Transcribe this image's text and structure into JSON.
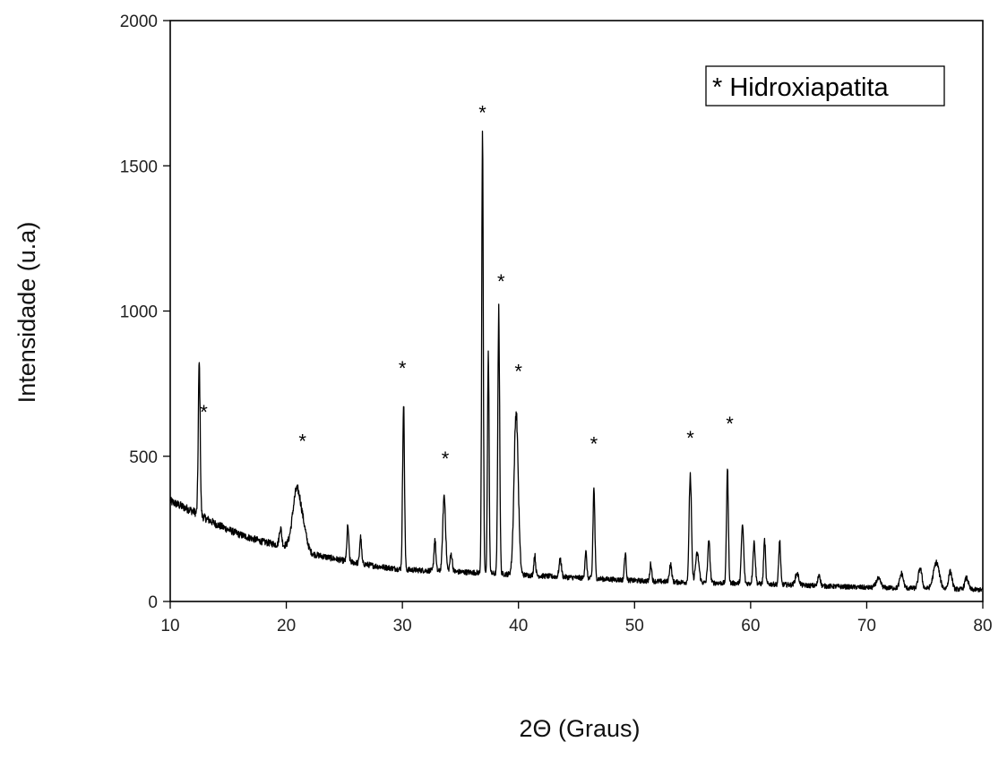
{
  "chart_data": {
    "type": "line",
    "xlabel": "2Θ (Graus)",
    "ylabel": "Intensidade (u.a)",
    "xlim": [
      10,
      80
    ],
    "ylim": [
      0,
      2000
    ],
    "xticks": [
      10,
      20,
      30,
      40,
      50,
      60,
      70,
      80
    ],
    "yticks": [
      0,
      500,
      1000,
      1500,
      2000
    ],
    "grid": false,
    "legend": {
      "text": "* Hidroxiapatita",
      "placement": "top-right"
    },
    "series": [
      {
        "color": "#000000",
        "baseline": [
          [
            10,
            345
          ],
          [
            12,
            310
          ],
          [
            14,
            265
          ],
          [
            16,
            230
          ],
          [
            18,
            205
          ],
          [
            20,
            190
          ],
          [
            22,
            165
          ],
          [
            25,
            140
          ],
          [
            28,
            120
          ],
          [
            30,
            110
          ],
          [
            33,
            105
          ],
          [
            36,
            100
          ],
          [
            40,
            92
          ],
          [
            45,
            82
          ],
          [
            50,
            72
          ],
          [
            55,
            65
          ],
          [
            60,
            62
          ],
          [
            65,
            55
          ],
          [
            70,
            48
          ],
          [
            75,
            45
          ],
          [
            80,
            40
          ]
        ],
        "peaks": [
          [
            12.5,
            520,
            0.08
          ],
          [
            19.5,
            60,
            0.1
          ],
          [
            20.9,
            200,
            0.35
          ],
          [
            21.5,
            60,
            0.3
          ],
          [
            25.3,
            120,
            0.08
          ],
          [
            26.4,
            90,
            0.08
          ],
          [
            30.1,
            570,
            0.08
          ],
          [
            32.8,
            110,
            0.08
          ],
          [
            33.6,
            260,
            0.12
          ],
          [
            34.2,
            60,
            0.1
          ],
          [
            36.9,
            1480,
            0.07
          ],
          [
            37.4,
            760,
            0.07
          ],
          [
            38.3,
            900,
            0.08
          ],
          [
            39.8,
            560,
            0.18
          ],
          [
            41.4,
            70,
            0.08
          ],
          [
            43.6,
            60,
            0.1
          ],
          [
            45.8,
            90,
            0.08
          ],
          [
            46.5,
            310,
            0.08
          ],
          [
            49.2,
            90,
            0.08
          ],
          [
            51.4,
            60,
            0.08
          ],
          [
            53.1,
            60,
            0.1
          ],
          [
            54.8,
            370,
            0.1
          ],
          [
            55.4,
            100,
            0.15
          ],
          [
            56.4,
            140,
            0.1
          ],
          [
            58.0,
            390,
            0.08
          ],
          [
            59.3,
            200,
            0.1
          ],
          [
            60.3,
            140,
            0.1
          ],
          [
            61.2,
            150,
            0.08
          ],
          [
            62.5,
            150,
            0.08
          ],
          [
            64.0,
            40,
            0.15
          ],
          [
            65.9,
            40,
            0.1
          ],
          [
            71.0,
            30,
            0.2
          ],
          [
            73.0,
            50,
            0.15
          ],
          [
            74.6,
            70,
            0.15
          ],
          [
            76.0,
            90,
            0.25
          ],
          [
            77.2,
            60,
            0.15
          ],
          [
            78.6,
            40,
            0.15
          ]
        ],
        "noise": 14
      }
    ],
    "annotations": [
      {
        "text": "*",
        "x": 12.9,
        "y": 660
      },
      {
        "text": "*",
        "x": 21.4,
        "y": 560
      },
      {
        "text": "*",
        "x": 30.0,
        "y": 810
      },
      {
        "text": "*",
        "x": 33.7,
        "y": 500
      },
      {
        "text": "*",
        "x": 36.9,
        "y": 1690
      },
      {
        "text": "*",
        "x": 38.5,
        "y": 1110
      },
      {
        "text": "*",
        "x": 40.0,
        "y": 800
      },
      {
        "text": "*",
        "x": 46.5,
        "y": 550
      },
      {
        "text": "*",
        "x": 54.8,
        "y": 570
      },
      {
        "text": "*",
        "x": 58.2,
        "y": 620
      }
    ]
  }
}
